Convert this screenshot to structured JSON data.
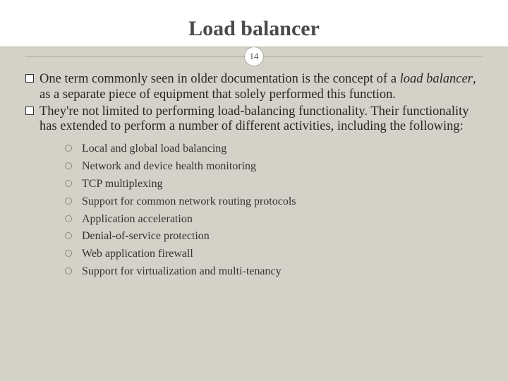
{
  "slide": {
    "title": "Load balancer",
    "page_number": "14",
    "background_color": "#d4d1c8",
    "title_bg_color": "#ffffff",
    "title_color": "#4a4a4a",
    "rule_color": "#b0ac9e",
    "text_color": "#262626",
    "title_fontsize": 30,
    "body_fontsize": 18.5,
    "sub_fontsize": 16
  },
  "paragraphs": [
    {
      "pre": "One term commonly seen in older documentation is the concept of a ",
      "em": "load balancer",
      "post": ", as a separate piece of equipment that solely performed this function."
    },
    {
      "pre": "They're not limited to performing load-balancing functionality. Their functionality has extended to perform a number of different activities, including the following:",
      "em": "",
      "post": ""
    }
  ],
  "subitems": [
    "Local and global load balancing",
    "Network and device health monitoring",
    "TCP multiplexing",
    "Support for common network routing protocols",
    "Application acceleration",
    "Denial-of-service protection",
    "Web application firewall",
    "Support for virtualization and multi-tenancy"
  ]
}
